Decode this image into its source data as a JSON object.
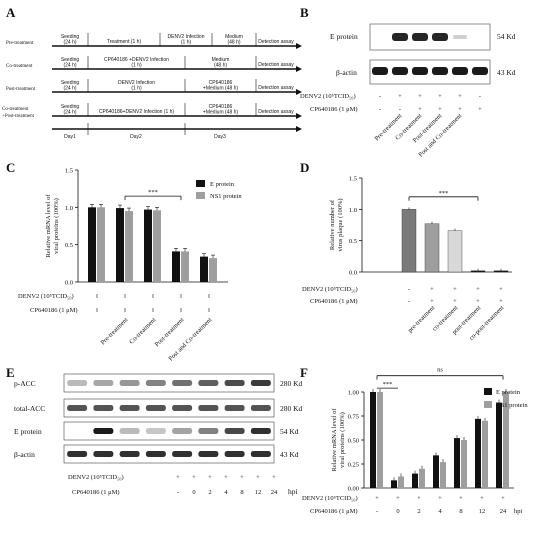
{
  "panels": {
    "A": "A",
    "B": "B",
    "C": "C",
    "D": "D",
    "E": "E",
    "F": "F"
  },
  "colors": {
    "black": "#111111",
    "gray": "#9e9e9e",
    "dark_gray": "#7a7a7a",
    "light_gray": "#d8d8d8",
    "light": "#c8c8c8",
    "band": "#1a1a1a"
  },
  "panelA": {
    "rows": [
      {
        "label": "Pre-treatment",
        "cells": [
          "Seeding\n(24 h)",
          "Treatment (1 h)",
          "DENV2 Infection\n(1 h)",
          "Medium\n(48 h)",
          "Detection assay"
        ]
      },
      {
        "label": "Co-treatment",
        "cells": [
          "Seeding\n(24 h)",
          "CP640186 +DENV2 Infection\n(1 h)",
          "Medium\n(48 h)",
          "Detection assay"
        ]
      },
      {
        "label": "Post-treatment",
        "cells": [
          "Seeding\n(24 h)",
          "DENV2 Infection\n(1 h)",
          "CP640186\n+Medium (48 h)",
          "Detection assay"
        ]
      },
      {
        "label": "Co-treatment\n+Post-treatment",
        "cells": [
          "Seeding\n(24 h)",
          "CP640186+DENV2 Infection (1 h)",
          "CP640186\n+Medium (48 h)",
          "Detection assay"
        ]
      }
    ],
    "days": [
      "Day1",
      "Day2",
      "Day3"
    ]
  },
  "panelB": {
    "bands": [
      "E protein",
      "β-actin"
    ],
    "sizes": [
      "54 Kd",
      "43 Kd"
    ],
    "denv_label": "DENV2 (10⁵TCID₅₀)",
    "cp_label": "CP640186 (1 μM)",
    "denv_signs": [
      "-",
      "+",
      "+",
      "+",
      "+",
      "-"
    ],
    "cp_signs": [
      "-",
      "-",
      "+",
      "+",
      "+",
      "+"
    ],
    "lanes": [
      "Pre-treatment",
      "Co-treatment",
      "Post-treatment",
      "Post and Co-treatment"
    ],
    "e_band_intensity": [
      0,
      1,
      1,
      1,
      0.05,
      0
    ]
  },
  "chart_data": [
    {
      "id": "C",
      "type": "bar",
      "ylabel": "Relative mRNA level of\nviral proteins (100%)",
      "ylim": [
        0,
        1.5
      ],
      "yticks": [
        "0.0",
        "0.5",
        "1.0",
        "1.5"
      ],
      "categories": [
        "",
        "Pre-treatment",
        "Co-treatment",
        "Post-treatment",
        "Post and Co-treatment"
      ],
      "series": [
        {
          "name": "E protein",
          "values": [
            1.0,
            0.99,
            0.97,
            0.41,
            0.34
          ],
          "color": "#111111"
        },
        {
          "name": "NS1 protein",
          "values": [
            1.0,
            0.95,
            0.96,
            0.41,
            0.32
          ],
          "color": "#9e9e9e"
        }
      ],
      "significance": "***",
      "bottom_labels": [
        "DENV2 (10⁵TCID₅₀)",
        "CP640186 (1 μM)"
      ]
    },
    {
      "id": "D",
      "type": "bar",
      "ylabel": "Relative number of\nvirus plaque (100%)",
      "ylim": [
        0,
        1.5
      ],
      "yticks": [
        "0.0",
        "0.5",
        "1.0",
        "1.5"
      ],
      "categories": [
        "",
        "pre-treatment",
        "co-treatment",
        "post-treatment",
        "co-post-treatment"
      ],
      "values": [
        1.0,
        0.77,
        0.66,
        0.02,
        0.02
      ],
      "colors": [
        "#7a7a7a",
        "#9e9e9e",
        "#d8d8d8",
        "#111111",
        "#111111"
      ],
      "significance": "***",
      "bottom_labels": [
        "DENV2 (10⁵TCID₅₀)",
        "CP640186 (1 μM)"
      ],
      "denv_signs": [
        "-",
        "+",
        "+",
        "+",
        "+"
      ],
      "cp_signs": [
        "-",
        "+",
        "+",
        "+",
        "+"
      ]
    },
    {
      "id": "F",
      "type": "bar",
      "ylabel": "Relative mRNA level of\nviral proteins (100%)",
      "ylim": [
        0,
        1.2
      ],
      "yticks": [
        "0.00",
        "0.25",
        "0.50",
        "0.75",
        "1.00"
      ],
      "categories": [
        "",
        "0",
        "2",
        "4",
        "8",
        "12",
        "24"
      ],
      "series": [
        {
          "name": "E protein",
          "values": [
            1.0,
            0.08,
            0.15,
            0.34,
            0.52,
            0.72,
            0.89
          ],
          "color": "#111111"
        },
        {
          "name": "NS1 protein",
          "values": [
            1.0,
            0.12,
            0.2,
            0.27,
            0.5,
            0.7,
            1.0
          ],
          "color": "#9e9e9e"
        }
      ],
      "significance": [
        "***",
        "ns"
      ],
      "bottom_labels": [
        "DENV2 (10⁵TCID₅₀)",
        "CP640186 (1 μM)"
      ],
      "hpi": "hpi",
      "denv_signs": [
        "+",
        "+",
        "+",
        "+",
        "+",
        "+",
        "+"
      ],
      "cp_signs": [
        "-",
        "+",
        "+",
        "+",
        "+",
        "+",
        "+"
      ]
    }
  ],
  "panelE": {
    "bands": [
      "p-ACC",
      "total-ACC",
      "E protein",
      "β-actin"
    ],
    "sizes": [
      "280 Kd",
      "280 Kd",
      "54 Kd",
      "43 Kd"
    ],
    "denv_label": "DENV2 (10⁵TCID₅₀)",
    "cp_label": "CP640186 (1 μM)",
    "hpi": "hpi",
    "denv_signs": [
      "-",
      "+",
      "+",
      "+",
      "+",
      "+",
      "+",
      "+"
    ],
    "cp_values": [
      "-",
      "-",
      "0",
      "2",
      "4",
      "8",
      "12",
      "24"
    ],
    "e_band_intensity": [
      0,
      1,
      0.3,
      0.25,
      0.4,
      0.55,
      0.8,
      0.9
    ]
  }
}
